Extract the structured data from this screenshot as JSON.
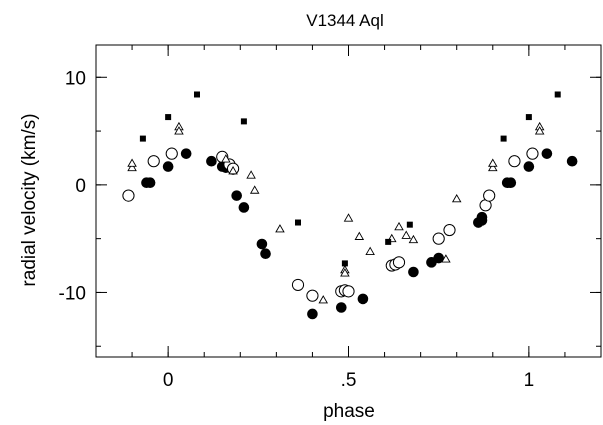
{
  "chart_data": {
    "type": "scatter",
    "title": "V1344 Aql",
    "xlabel": "phase",
    "ylabel": "radial velocity (km/s)",
    "xlim": [
      -0.2,
      1.2
    ],
    "ylim": [
      -16,
      13
    ],
    "x_ticks": [
      {
        "value": 0,
        "label": "0"
      },
      {
        "value": 0.5,
        "label": ".5"
      },
      {
        "value": 1,
        "label": "1"
      }
    ],
    "y_ticks": [
      {
        "value": 10,
        "label": "10"
      },
      {
        "value": 0,
        "label": "0"
      },
      {
        "value": -10,
        "label": "-10"
      }
    ],
    "x_minor_step": 0.1,
    "y_minor_step": 5,
    "grid": false,
    "series": [
      {
        "marker": "filled-circle",
        "points": [
          [
            -0.06,
            0.2
          ],
          [
            -0.05,
            0.2
          ],
          [
            0.0,
            1.7
          ],
          [
            0.05,
            2.9
          ],
          [
            0.12,
            2.2
          ],
          [
            0.15,
            1.7
          ],
          [
            0.16,
            1.6
          ],
          [
            0.19,
            -1.0
          ],
          [
            0.21,
            -2.1
          ],
          [
            0.26,
            -5.5
          ],
          [
            0.27,
            -6.4
          ],
          [
            0.4,
            -12.0
          ],
          [
            0.48,
            -11.4
          ],
          [
            0.54,
            -10.6
          ],
          [
            0.68,
            -8.1
          ],
          [
            0.73,
            -7.2
          ],
          [
            0.75,
            -6.8
          ],
          [
            0.86,
            -3.5
          ],
          [
            0.87,
            -3.3
          ],
          [
            0.87,
            -3.0
          ],
          [
            0.94,
            0.2
          ],
          [
            0.95,
            0.2
          ],
          [
            1.0,
            1.7
          ],
          [
            1.05,
            2.9
          ],
          [
            1.12,
            2.2
          ]
        ]
      },
      {
        "marker": "open-circle",
        "points": [
          [
            -0.11,
            -1.0
          ],
          [
            -0.04,
            2.2
          ],
          [
            0.01,
            2.9
          ],
          [
            0.15,
            2.6
          ],
          [
            0.17,
            1.9
          ],
          [
            0.18,
            1.5
          ],
          [
            0.36,
            -9.3
          ],
          [
            0.4,
            -10.3
          ],
          [
            0.48,
            -9.9
          ],
          [
            0.49,
            -9.8
          ],
          [
            0.5,
            -9.9
          ],
          [
            0.62,
            -7.5
          ],
          [
            0.63,
            -7.4
          ],
          [
            0.64,
            -7.2
          ],
          [
            0.75,
            -5.0
          ],
          [
            0.78,
            -4.2
          ],
          [
            0.88,
            -1.9
          ],
          [
            0.89,
            -1.0
          ],
          [
            0.96,
            2.2
          ],
          [
            1.01,
            2.9
          ]
        ]
      },
      {
        "marker": "open-triangle",
        "points": [
          [
            -0.1,
            1.6
          ],
          [
            -0.1,
            2.0
          ],
          [
            0.03,
            5.4
          ],
          [
            0.03,
            5.0
          ],
          [
            0.16,
            2.4
          ],
          [
            0.18,
            1.3
          ],
          [
            0.23,
            0.9
          ],
          [
            0.24,
            -0.5
          ],
          [
            0.31,
            -4.1
          ],
          [
            0.43,
            -10.7
          ],
          [
            0.49,
            -7.9
          ],
          [
            0.49,
            -8.2
          ],
          [
            0.5,
            -3.1
          ],
          [
            0.53,
            -4.8
          ],
          [
            0.56,
            -6.2
          ],
          [
            0.62,
            -5.0
          ],
          [
            0.64,
            -3.9
          ],
          [
            0.66,
            -4.7
          ],
          [
            0.68,
            -5.1
          ],
          [
            0.77,
            -6.9
          ],
          [
            0.8,
            -1.3
          ],
          [
            0.9,
            1.6
          ],
          [
            0.9,
            2.0
          ],
          [
            1.03,
            5.4
          ],
          [
            1.03,
            5.0
          ]
        ]
      },
      {
        "marker": "filled-square",
        "points": [
          [
            -0.07,
            4.3
          ],
          [
            0.0,
            6.3
          ],
          [
            0.08,
            8.4
          ],
          [
            0.21,
            5.9
          ],
          [
            0.36,
            -3.5
          ],
          [
            0.49,
            -7.3
          ],
          [
            0.61,
            -5.3
          ],
          [
            0.67,
            -3.7
          ],
          [
            0.93,
            4.3
          ],
          [
            1.0,
            6.3
          ],
          [
            1.08,
            8.4
          ]
        ]
      }
    ]
  }
}
